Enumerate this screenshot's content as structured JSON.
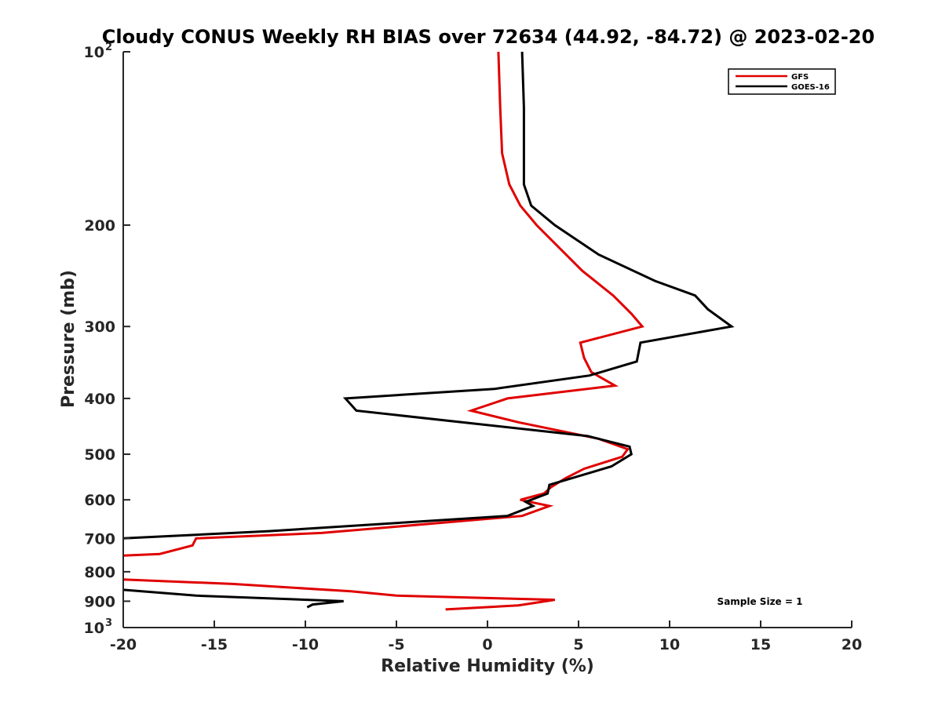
{
  "chart_data": {
    "type": "line",
    "title": "Cloudy CONUS Weekly RH BIAS over 72634 (44.92, -84.72) @ 2023-02-20",
    "xlabel": "Relative Humidity (%)",
    "ylabel": "Pressure (mb)",
    "xlim": [
      -20,
      20
    ],
    "ylim": [
      100,
      1000
    ],
    "y_scale": "log",
    "y_reversed": true,
    "x_ticks": [
      -20,
      -15,
      -10,
      -5,
      0,
      5,
      10,
      15,
      20
    ],
    "x_tick_labels": [
      "-20",
      "-15",
      "-10",
      "-5",
      "0",
      "5",
      "10",
      "15",
      "20"
    ],
    "y_ticks": [
      {
        "value": 100,
        "base": "10",
        "exp": "2"
      },
      {
        "value": 200,
        "label": "200"
      },
      {
        "value": 300,
        "label": "300"
      },
      {
        "value": 400,
        "label": "400"
      },
      {
        "value": 500,
        "label": "500"
      },
      {
        "value": 600,
        "label": "600"
      },
      {
        "value": 700,
        "label": "700"
      },
      {
        "value": 800,
        "label": "800"
      },
      {
        "value": 900,
        "label": "900"
      },
      {
        "value": 1000,
        "base": "10",
        "exp": "3"
      }
    ],
    "grid": false,
    "legend_position": "top-right",
    "annotation": "Sample Size = 1",
    "series": [
      {
        "name": "GFS",
        "color": "#e00000",
        "points": [
          [
            0.6,
            100
          ],
          [
            0.7,
            125
          ],
          [
            0.8,
            150
          ],
          [
            1.2,
            170
          ],
          [
            1.8,
            185
          ],
          [
            2.7,
            200
          ],
          [
            5.2,
            240
          ],
          [
            6.9,
            265
          ],
          [
            7.9,
            285
          ],
          [
            8.5,
            300
          ],
          [
            5.1,
            320
          ],
          [
            5.3,
            340
          ],
          [
            5.7,
            360
          ],
          [
            7.0,
            380
          ],
          [
            1.1,
            400
          ],
          [
            -0.9,
            420
          ],
          [
            1.7,
            440
          ],
          [
            6.1,
            470
          ],
          [
            7.7,
            490
          ],
          [
            7.4,
            505
          ],
          [
            5.3,
            530
          ],
          [
            4.3,
            550
          ],
          [
            3.5,
            570
          ],
          [
            3.1,
            585
          ],
          [
            1.8,
            600
          ],
          [
            3.4,
            615
          ],
          [
            1.9,
            640
          ],
          [
            -9.1,
            685
          ],
          [
            -16.0,
            700
          ],
          [
            -16.2,
            720
          ],
          [
            -18.0,
            745
          ],
          [
            -20.0,
            750
          ],
          null,
          [
            -20.0,
            825
          ],
          [
            -14.0,
            840
          ],
          [
            -7.5,
            865
          ],
          [
            -5.0,
            880
          ],
          [
            3.7,
            895
          ],
          [
            1.7,
            915
          ],
          [
            -2.3,
            930
          ]
        ]
      },
      {
        "name": "GOES-16",
        "color": "#000000",
        "points": [
          [
            1.9,
            100
          ],
          [
            2.0,
            125
          ],
          [
            2.0,
            150
          ],
          [
            2.0,
            170
          ],
          [
            2.4,
            185
          ],
          [
            3.7,
            200
          ],
          [
            6.1,
            225
          ],
          [
            9.2,
            250
          ],
          [
            11.4,
            265
          ],
          [
            12.1,
            280
          ],
          [
            13.4,
            300
          ],
          [
            8.4,
            320
          ],
          [
            8.2,
            345
          ],
          [
            5.6,
            365
          ],
          [
            0.4,
            385
          ],
          [
            -7.8,
            400
          ],
          [
            -7.2,
            420
          ],
          [
            5.5,
            465
          ],
          [
            7.8,
            485
          ],
          [
            7.9,
            500
          ],
          [
            6.8,
            525
          ],
          [
            3.4,
            565
          ],
          [
            3.3,
            585
          ],
          [
            2.1,
            605
          ],
          [
            2.5,
            615
          ],
          [
            1.1,
            640
          ],
          [
            -12.0,
            680
          ],
          [
            -20.0,
            700
          ],
          null,
          [
            -20.0,
            860
          ],
          [
            -16.0,
            880
          ],
          [
            -7.9,
            900
          ],
          [
            -9.6,
            912
          ],
          [
            -9.9,
            922
          ]
        ]
      }
    ]
  }
}
